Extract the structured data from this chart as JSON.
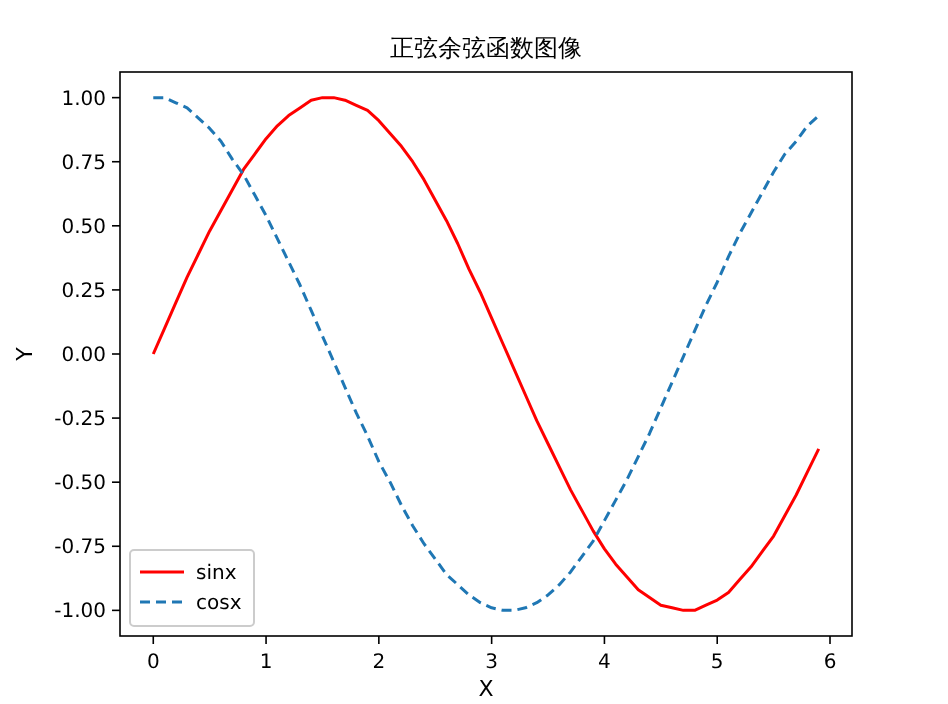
{
  "chart_data": {
    "type": "line",
    "title": "正弦余弦函数图像",
    "xlabel": "X",
    "ylabel": "Y",
    "x": [
      0,
      0.1,
      0.2,
      0.3,
      0.4,
      0.5,
      0.6,
      0.7,
      0.8,
      0.9,
      1.0,
      1.1,
      1.2,
      1.3,
      1.4,
      1.5,
      1.6,
      1.7,
      1.8,
      1.9,
      2.0,
      2.1,
      2.2,
      2.3,
      2.4,
      2.5,
      2.6,
      2.7,
      2.8,
      2.9,
      3.0,
      3.1,
      3.2,
      3.3,
      3.4,
      3.5,
      3.6,
      3.7,
      3.8,
      3.9,
      4.0,
      4.1,
      4.2,
      4.3,
      4.4,
      4.5,
      4.6,
      4.7,
      4.8,
      4.9,
      5.0,
      5.1,
      5.2,
      5.3,
      5.4,
      5.5,
      5.6,
      5.7,
      5.8,
      5.9
    ],
    "series": [
      {
        "name": "sinx",
        "color": "#ff0000",
        "line_style": "solid",
        "values": [
          0,
          0.1,
          0.2,
          0.3,
          0.39,
          0.48,
          0.56,
          0.64,
          0.72,
          0.78,
          0.84,
          0.89,
          0.93,
          0.96,
          0.99,
          1.0,
          1.0,
          0.99,
          0.97,
          0.95,
          0.91,
          0.86,
          0.81,
          0.75,
          0.68,
          0.6,
          0.52,
          0.43,
          0.33,
          0.24,
          0.14,
          0.04,
          -0.06,
          -0.16,
          -0.26,
          -0.35,
          -0.44,
          -0.53,
          -0.61,
          -0.69,
          -0.76,
          -0.82,
          -0.87,
          -0.92,
          -0.95,
          -0.98,
          -0.99,
          -1.0,
          -1.0,
          -0.98,
          -0.96,
          -0.93,
          -0.88,
          -0.83,
          -0.77,
          -0.71,
          -0.63,
          -0.55,
          -0.46,
          -0.37
        ]
      },
      {
        "name": "cosx",
        "color": "#1f77b4",
        "line_style": "dashed",
        "values": [
          1.0,
          1.0,
          0.98,
          0.96,
          0.92,
          0.88,
          0.83,
          0.76,
          0.7,
          0.62,
          0.54,
          0.45,
          0.36,
          0.27,
          0.17,
          0.07,
          -0.03,
          -0.13,
          -0.23,
          -0.32,
          -0.42,
          -0.5,
          -0.59,
          -0.67,
          -0.74,
          -0.8,
          -0.86,
          -0.9,
          -0.94,
          -0.97,
          -0.99,
          -1.0,
          -1.0,
          -0.99,
          -0.97,
          -0.94,
          -0.9,
          -0.85,
          -0.79,
          -0.73,
          -0.65,
          -0.57,
          -0.49,
          -0.4,
          -0.31,
          -0.21,
          -0.11,
          -0.01,
          0.09,
          0.19,
          0.28,
          0.38,
          0.47,
          0.55,
          0.63,
          0.71,
          0.78,
          0.83,
          0.89,
          0.93
        ]
      }
    ],
    "xlim": [
      -0.295,
      6.195
    ],
    "ylim": [
      -1.1,
      1.1
    ],
    "xticks": [
      0,
      1,
      2,
      3,
      4,
      5,
      6
    ],
    "yticks": [
      {
        "value": -1,
        "label": "-1.00"
      },
      {
        "value": -0.75,
        "label": "-0.75"
      },
      {
        "value": -0.5,
        "label": "-0.50"
      },
      {
        "value": -0.25,
        "label": "-0.25"
      },
      {
        "value": 0,
        "label": "0.00"
      },
      {
        "value": 0.25,
        "label": "0.25"
      },
      {
        "value": 0.5,
        "label": "0.50"
      },
      {
        "value": 0.75,
        "label": "0.75"
      },
      {
        "value": 1,
        "label": "1.00"
      }
    ],
    "legend": "bottom left"
  }
}
